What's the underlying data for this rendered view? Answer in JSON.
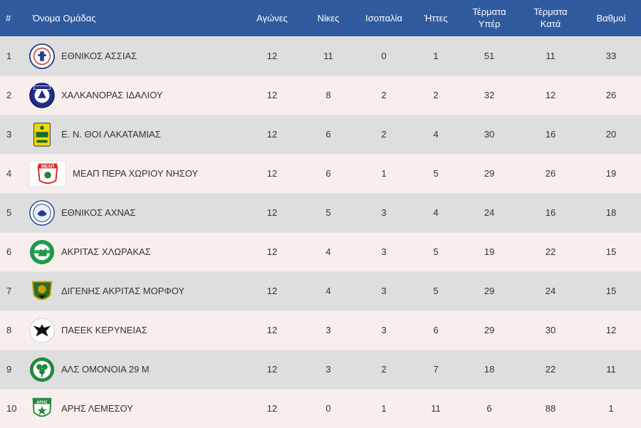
{
  "columns": {
    "pos": "#",
    "team": "Όνομα Ομάδας",
    "played": "Αγώνες",
    "wins": "Νίκες",
    "draws": "Ισοπαλία",
    "losses": "Ήττες",
    "goals_for": "Τέρματα\nΥπέρ",
    "goals_against": "Τέρματα\nΚατά",
    "points": "Βαθμοί"
  },
  "rows": [
    {
      "pos": "1",
      "team": "ΕΘΝΙΚΟΣ ΑΣΣΙΑΣ",
      "logo_icon": "ethnikos-assias-crest-icon",
      "played": "12",
      "wins": "11",
      "draws": "0",
      "losses": "1",
      "goals_for": "51",
      "goals_against": "11",
      "points": "33"
    },
    {
      "pos": "2",
      "team": "ΧΑΛΚΑΝΟΡΑΣ ΙΔΑΛΙΟΥ",
      "logo_icon": "chalkanoras-crest-icon",
      "played": "12",
      "wins": "8",
      "draws": "2",
      "losses": "2",
      "goals_for": "32",
      "goals_against": "12",
      "points": "26"
    },
    {
      "pos": "3",
      "team": "Ε. Ν. ΘΟΙ ΛΑΚΑΤΑΜΙΑΣ",
      "logo_icon": "thoi-crest-icon",
      "played": "12",
      "wins": "6",
      "draws": "2",
      "losses": "4",
      "goals_for": "30",
      "goals_against": "16",
      "points": "20"
    },
    {
      "pos": "4",
      "team": "ΜΕΑΠ ΠΕΡΑ ΧΩΡΙΟΥ ΝΗΣΟΥ",
      "logo_icon": "meap-crest-icon",
      "logo_text": "ΜΕΑΠ",
      "played": "12",
      "wins": "6",
      "draws": "1",
      "losses": "5",
      "goals_for": "29",
      "goals_against": "26",
      "points": "19"
    },
    {
      "pos": "5",
      "team": "ΕΘΝΙΚΟΣ ΑΧΝΑΣ",
      "logo_icon": "ethnikos-achnas-crest-icon",
      "played": "12",
      "wins": "5",
      "draws": "3",
      "losses": "4",
      "goals_for": "24",
      "goals_against": "16",
      "points": "18"
    },
    {
      "pos": "6",
      "team": "ΑΚΡΙΤΑΣ ΧΛΩΡΑΚΑΣ",
      "logo_icon": "akritas-crest-icon",
      "played": "12",
      "wins": "4",
      "draws": "3",
      "losses": "5",
      "goals_for": "19",
      "goals_against": "22",
      "points": "15"
    },
    {
      "pos": "7",
      "team": "ΔΙΓΕΝΗΣ ΑΚΡΙΤΑΣ ΜΟΡΦΟΥ",
      "logo_icon": "digenis-crest-icon",
      "played": "12",
      "wins": "4",
      "draws": "3",
      "losses": "5",
      "goals_for": "29",
      "goals_against": "24",
      "points": "15"
    },
    {
      "pos": "8",
      "team": "ΠΑΕΕΚ ΚΕΡΥΝΕΙΑΣ",
      "logo_icon": "paeek-eagle-crest-icon",
      "played": "12",
      "wins": "3",
      "draws": "3",
      "losses": "6",
      "goals_for": "29",
      "goals_against": "30",
      "points": "12"
    },
    {
      "pos": "9",
      "team": "ΑΛΣ ΟΜΟΝΟΙΑ 29 Μ",
      "logo_icon": "omonoia-clover-crest-icon",
      "played": "12",
      "wins": "3",
      "draws": "2",
      "losses": "7",
      "goals_for": "18",
      "goals_against": "22",
      "points": "11"
    },
    {
      "pos": "10",
      "team": "ΑΡΗΣ ΛΕΜΕΣΟΥ",
      "logo_icon": "aris-crest-icon",
      "logo_text": "ΑΡΗΣ",
      "played": "12",
      "wins": "0",
      "draws": "1",
      "losses": "11",
      "goals_for": "6",
      "goals_against": "88",
      "points": "1"
    }
  ],
  "colors": {
    "header_bg": "#2f5a9e",
    "row_odd": "#dedede",
    "row_even": "#f8eeee"
  }
}
